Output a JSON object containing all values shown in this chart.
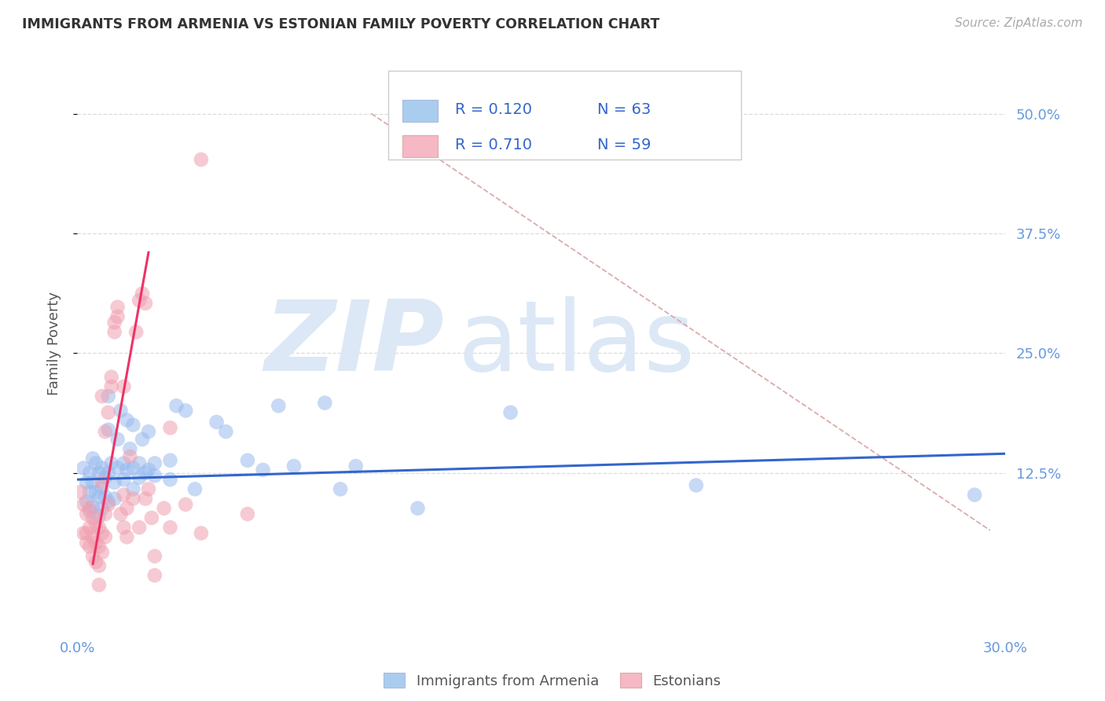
{
  "title": "IMMIGRANTS FROM ARMENIA VS ESTONIAN FAMILY POVERTY CORRELATION CHART",
  "source_text": "Source: ZipAtlas.com",
  "ylabel": "Family Poverty",
  "xlim": [
    0.0,
    0.3
  ],
  "ylim": [
    -0.04,
    0.56
  ],
  "yticks": [
    0.125,
    0.25,
    0.375,
    0.5
  ],
  "ytick_labels": [
    "12.5%",
    "25.0%",
    "37.5%",
    "50.0%"
  ],
  "xticks": [
    0.0,
    0.05,
    0.1,
    0.15,
    0.2,
    0.25,
    0.3
  ],
  "title_color": "#333333",
  "source_color": "#aaaaaa",
  "grid_color": "#dddddd",
  "label_color": "#6699dd",
  "watermark_color": "#dce8f5",
  "scatter_blue_color": "#99bbee",
  "scatter_pink_color": "#f0a0b0",
  "blue_line_color": "#3366cc",
  "pink_line_color": "#ee3366",
  "diag_line_color": "#ddaaaa",
  "legend_text_color": "#3366cc",
  "legend_box_edge": "#cccccc",
  "blue_scatter": [
    [
      0.002,
      0.13
    ],
    [
      0.003,
      0.115
    ],
    [
      0.003,
      0.095
    ],
    [
      0.004,
      0.125
    ],
    [
      0.004,
      0.105
    ],
    [
      0.004,
      0.085
    ],
    [
      0.005,
      0.14
    ],
    [
      0.005,
      0.115
    ],
    [
      0.005,
      0.09
    ],
    [
      0.006,
      0.135
    ],
    [
      0.006,
      0.105
    ],
    [
      0.007,
      0.125
    ],
    [
      0.007,
      0.1
    ],
    [
      0.007,
      0.08
    ],
    [
      0.008,
      0.13
    ],
    [
      0.008,
      0.11
    ],
    [
      0.008,
      0.088
    ],
    [
      0.009,
      0.12
    ],
    [
      0.009,
      0.1
    ],
    [
      0.01,
      0.205
    ],
    [
      0.01,
      0.17
    ],
    [
      0.01,
      0.125
    ],
    [
      0.01,
      0.095
    ],
    [
      0.011,
      0.135
    ],
    [
      0.012,
      0.115
    ],
    [
      0.012,
      0.098
    ],
    [
      0.013,
      0.16
    ],
    [
      0.013,
      0.13
    ],
    [
      0.014,
      0.19
    ],
    [
      0.015,
      0.135
    ],
    [
      0.015,
      0.118
    ],
    [
      0.016,
      0.18
    ],
    [
      0.016,
      0.128
    ],
    [
      0.017,
      0.15
    ],
    [
      0.018,
      0.175
    ],
    [
      0.018,
      0.13
    ],
    [
      0.018,
      0.108
    ],
    [
      0.02,
      0.135
    ],
    [
      0.02,
      0.12
    ],
    [
      0.021,
      0.16
    ],
    [
      0.022,
      0.125
    ],
    [
      0.023,
      0.168
    ],
    [
      0.023,
      0.128
    ],
    [
      0.025,
      0.135
    ],
    [
      0.025,
      0.122
    ],
    [
      0.03,
      0.138
    ],
    [
      0.03,
      0.118
    ],
    [
      0.032,
      0.195
    ],
    [
      0.035,
      0.19
    ],
    [
      0.038,
      0.108
    ],
    [
      0.045,
      0.178
    ],
    [
      0.048,
      0.168
    ],
    [
      0.055,
      0.138
    ],
    [
      0.06,
      0.128
    ],
    [
      0.065,
      0.195
    ],
    [
      0.07,
      0.132
    ],
    [
      0.08,
      0.198
    ],
    [
      0.085,
      0.108
    ],
    [
      0.09,
      0.132
    ],
    [
      0.11,
      0.088
    ],
    [
      0.14,
      0.188
    ],
    [
      0.2,
      0.112
    ],
    [
      0.29,
      0.102
    ]
  ],
  "pink_scatter": [
    [
      0.001,
      0.105
    ],
    [
      0.002,
      0.092
    ],
    [
      0.002,
      0.062
    ],
    [
      0.003,
      0.082
    ],
    [
      0.003,
      0.062
    ],
    [
      0.003,
      0.052
    ],
    [
      0.004,
      0.088
    ],
    [
      0.004,
      0.068
    ],
    [
      0.004,
      0.048
    ],
    [
      0.005,
      0.078
    ],
    [
      0.005,
      0.058
    ],
    [
      0.005,
      0.038
    ],
    [
      0.006,
      0.072
    ],
    [
      0.006,
      0.052
    ],
    [
      0.006,
      0.032
    ],
    [
      0.007,
      0.068
    ],
    [
      0.007,
      0.048
    ],
    [
      0.007,
      0.028
    ],
    [
      0.007,
      0.008
    ],
    [
      0.008,
      0.205
    ],
    [
      0.008,
      0.115
    ],
    [
      0.008,
      0.062
    ],
    [
      0.008,
      0.042
    ],
    [
      0.009,
      0.168
    ],
    [
      0.009,
      0.082
    ],
    [
      0.009,
      0.058
    ],
    [
      0.01,
      0.188
    ],
    [
      0.01,
      0.092
    ],
    [
      0.011,
      0.215
    ],
    [
      0.011,
      0.225
    ],
    [
      0.012,
      0.282
    ],
    [
      0.012,
      0.272
    ],
    [
      0.013,
      0.298
    ],
    [
      0.013,
      0.288
    ],
    [
      0.014,
      0.082
    ],
    [
      0.015,
      0.215
    ],
    [
      0.015,
      0.102
    ],
    [
      0.015,
      0.068
    ],
    [
      0.016,
      0.088
    ],
    [
      0.016,
      0.058
    ],
    [
      0.017,
      0.142
    ],
    [
      0.018,
      0.098
    ],
    [
      0.019,
      0.272
    ],
    [
      0.02,
      0.305
    ],
    [
      0.02,
      0.068
    ],
    [
      0.021,
      0.312
    ],
    [
      0.022,
      0.302
    ],
    [
      0.022,
      0.098
    ],
    [
      0.023,
      0.108
    ],
    [
      0.024,
      0.078
    ],
    [
      0.025,
      0.038
    ],
    [
      0.025,
      0.018
    ],
    [
      0.028,
      0.088
    ],
    [
      0.03,
      0.172
    ],
    [
      0.03,
      0.068
    ],
    [
      0.035,
      0.092
    ],
    [
      0.04,
      0.452
    ],
    [
      0.04,
      0.062
    ],
    [
      0.055,
      0.082
    ]
  ],
  "blue_line_x": [
    0.0,
    0.3
  ],
  "blue_line_y": [
    0.118,
    0.145
  ],
  "pink_line_x": [
    0.005,
    0.023
  ],
  "pink_line_y": [
    0.03,
    0.355
  ],
  "diag_line_x": [
    0.095,
    0.295
  ],
  "diag_line_y": [
    0.5,
    0.065
  ],
  "legend_blue_r": "0.120",
  "legend_blue_n": "63",
  "legend_pink_r": "0.710",
  "legend_pink_n": "59",
  "legend_blue_patch": "#aaccee",
  "legend_pink_patch": "#f5b8c4"
}
